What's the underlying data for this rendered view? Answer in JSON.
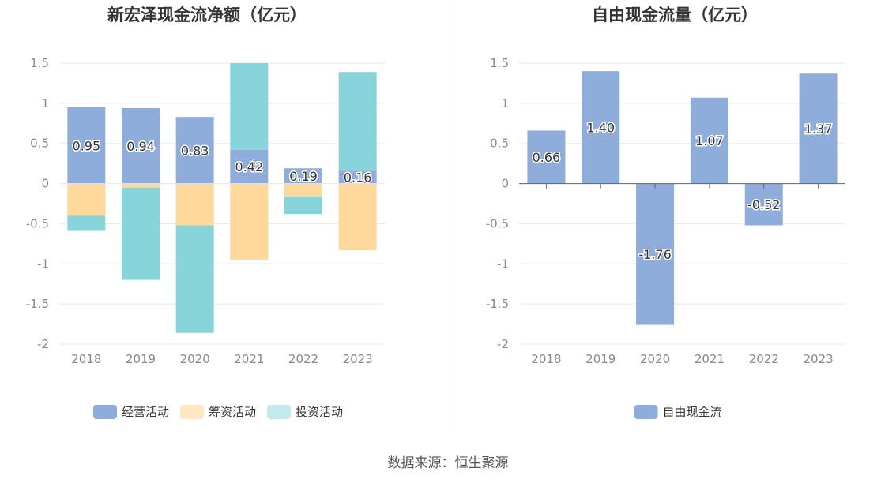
{
  "source_text": "数据来源：恒生聚源",
  "chart_data": [
    {
      "type": "bar",
      "stacked": true,
      "title": "新宏泽现金流净额（亿元）",
      "categories": [
        "2018",
        "2019",
        "2020",
        "2021",
        "2022",
        "2023"
      ],
      "ylim": [
        -2,
        1.5
      ],
      "yticks": [
        1.5,
        1,
        0.5,
        0,
        -0.5,
        -1,
        -1.5,
        -2
      ],
      "ytick_labels": [
        "1.5",
        "1",
        "0.5",
        "0",
        "-0.5",
        "-1",
        "-1.5",
        "-2"
      ],
      "series": [
        {
          "name": "经营活动",
          "color": "#8eaddb",
          "legend_color": "#8eaddb",
          "values": [
            0.95,
            0.94,
            0.83,
            0.42,
            0.19,
            0.16
          ],
          "labels": [
            "0.95",
            "0.94",
            "0.83",
            "0.42",
            "0.19",
            "0.16"
          ]
        },
        {
          "name": "筹资活动",
          "color": "#fed99b",
          "legend_color": "#ffe7c2",
          "values": [
            -0.4,
            -0.05,
            -0.52,
            -0.95,
            -0.16,
            -0.83
          ]
        },
        {
          "name": "投资活动",
          "color": "#87d5da",
          "legend_color": "#c2eaec",
          "values": [
            -0.19,
            -1.15,
            -1.34,
            1.08,
            -0.22,
            1.23
          ]
        }
      ],
      "grid": true,
      "legend": "bottom-center"
    },
    {
      "type": "bar",
      "title": "自由现金流量（亿元）",
      "categories": [
        "2018",
        "2019",
        "2020",
        "2021",
        "2022",
        "2023"
      ],
      "ylim": [
        -2,
        1.5
      ],
      "yticks": [
        1.5,
        1,
        0.5,
        0,
        -0.5,
        -1,
        -1.5,
        -2
      ],
      "ytick_labels": [
        "1.5",
        "1",
        "0.5",
        "0",
        "-0.5",
        "-1",
        "-1.5",
        "-2"
      ],
      "series": [
        {
          "name": "自由现金流",
          "color": "#8eaddb",
          "legend_color": "#8eaddb",
          "values": [
            0.66,
            1.4,
            -1.76,
            1.07,
            -0.52,
            1.37
          ],
          "labels": [
            "0.66",
            "1.40",
            "-1.76",
            "1.07",
            "-0.52",
            "1.37"
          ]
        }
      ],
      "grid": true,
      "legend": "bottom-center"
    }
  ]
}
